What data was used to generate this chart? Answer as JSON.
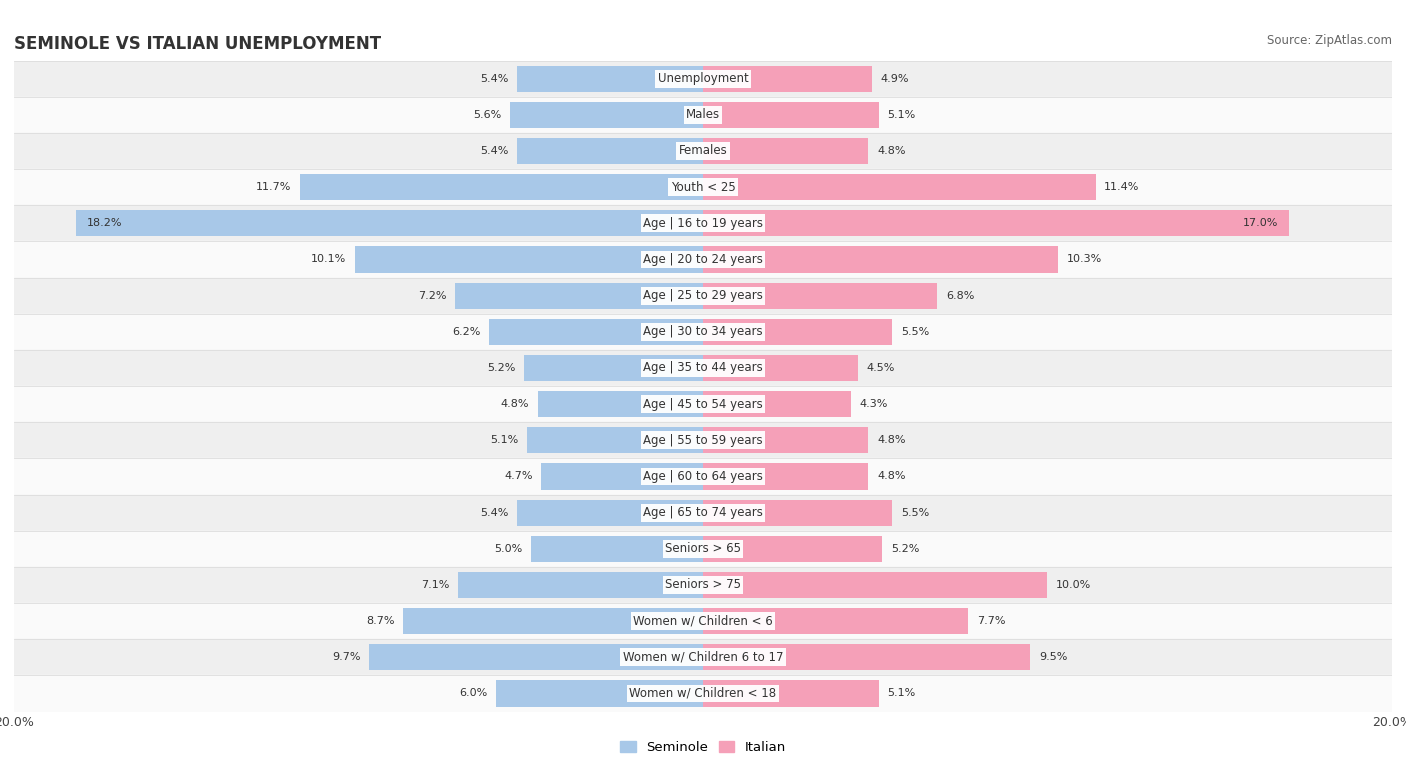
{
  "title": "SEMINOLE VS ITALIAN UNEMPLOYMENT",
  "source": "Source: ZipAtlas.com",
  "categories": [
    "Unemployment",
    "Males",
    "Females",
    "Youth < 25",
    "Age | 16 to 19 years",
    "Age | 20 to 24 years",
    "Age | 25 to 29 years",
    "Age | 30 to 34 years",
    "Age | 35 to 44 years",
    "Age | 45 to 54 years",
    "Age | 55 to 59 years",
    "Age | 60 to 64 years",
    "Age | 65 to 74 years",
    "Seniors > 65",
    "Seniors > 75",
    "Women w/ Children < 6",
    "Women w/ Children 6 to 17",
    "Women w/ Children < 18"
  ],
  "seminole": [
    5.4,
    5.6,
    5.4,
    11.7,
    18.2,
    10.1,
    7.2,
    6.2,
    5.2,
    4.8,
    5.1,
    4.7,
    5.4,
    5.0,
    7.1,
    8.7,
    9.7,
    6.0
  ],
  "italian": [
    4.9,
    5.1,
    4.8,
    11.4,
    17.0,
    10.3,
    6.8,
    5.5,
    4.5,
    4.3,
    4.8,
    4.8,
    5.5,
    5.2,
    10.0,
    7.7,
    9.5,
    5.1
  ],
  "seminole_color": "#a8c8e8",
  "italian_color": "#f5a0b8",
  "bg_row_light": "#efefef",
  "bg_row_white": "#fafafa",
  "max_val": 20.0,
  "legend_seminole": "Seminole",
  "legend_italian": "Italian",
  "title_fontsize": 12,
  "source_fontsize": 8.5,
  "label_fontsize": 8.5,
  "value_fontsize": 8.0,
  "bar_height": 0.72
}
